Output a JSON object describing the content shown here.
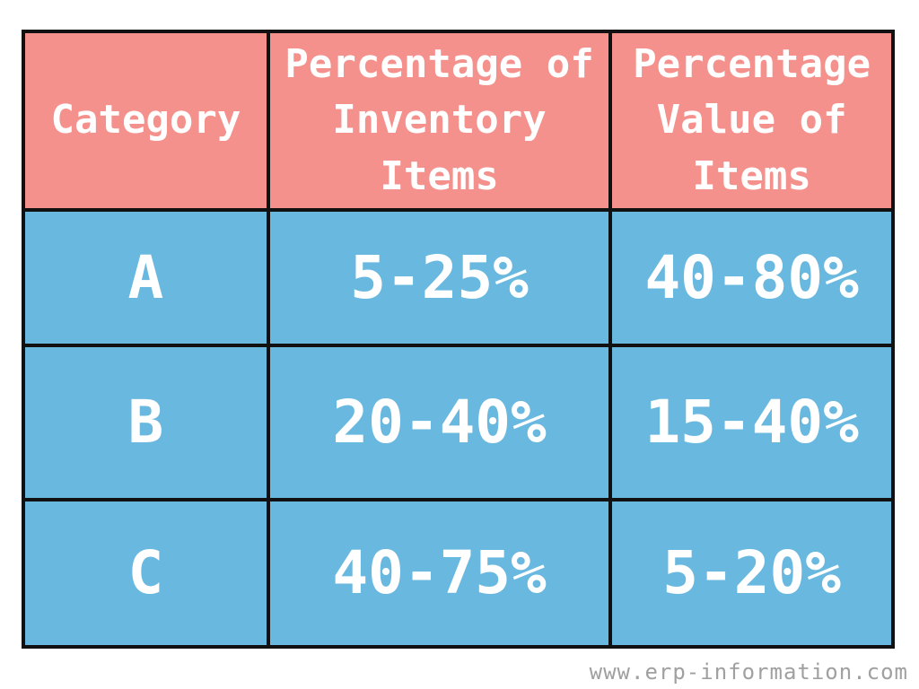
{
  "colors": {
    "header_bg": "#F4918D",
    "body_bg": "#69B8DF",
    "border": "#111111",
    "cell_text": "#FFFFFF",
    "page_bg": "#FFFFFF",
    "watermark_text": "#A0A0A0"
  },
  "table": {
    "headers": [
      {
        "label": "Category"
      },
      {
        "label": "Percentage of\nInventory\nItems"
      },
      {
        "label": "Percentage\nValue of\nItems"
      }
    ],
    "rows": [
      {
        "category": "A",
        "inventory_pct": "5-25%",
        "value_pct": "40-80%"
      },
      {
        "category": "B",
        "inventory_pct": "20-40%",
        "value_pct": "15-40%"
      },
      {
        "category": "C",
        "inventory_pct": "40-75%",
        "value_pct": "5-20%"
      }
    ]
  },
  "watermark": {
    "text": "www.erp-information.com"
  },
  "chart_data": {
    "type": "table",
    "columns": [
      "Category",
      "Percentage of Inventory Items",
      "Percentage Value of Items"
    ],
    "rows": [
      [
        "A",
        "5-25%",
        "40-80%"
      ],
      [
        "B",
        "20-40%",
        "15-40%"
      ],
      [
        "C",
        "40-75%",
        "5-20%"
      ]
    ]
  }
}
